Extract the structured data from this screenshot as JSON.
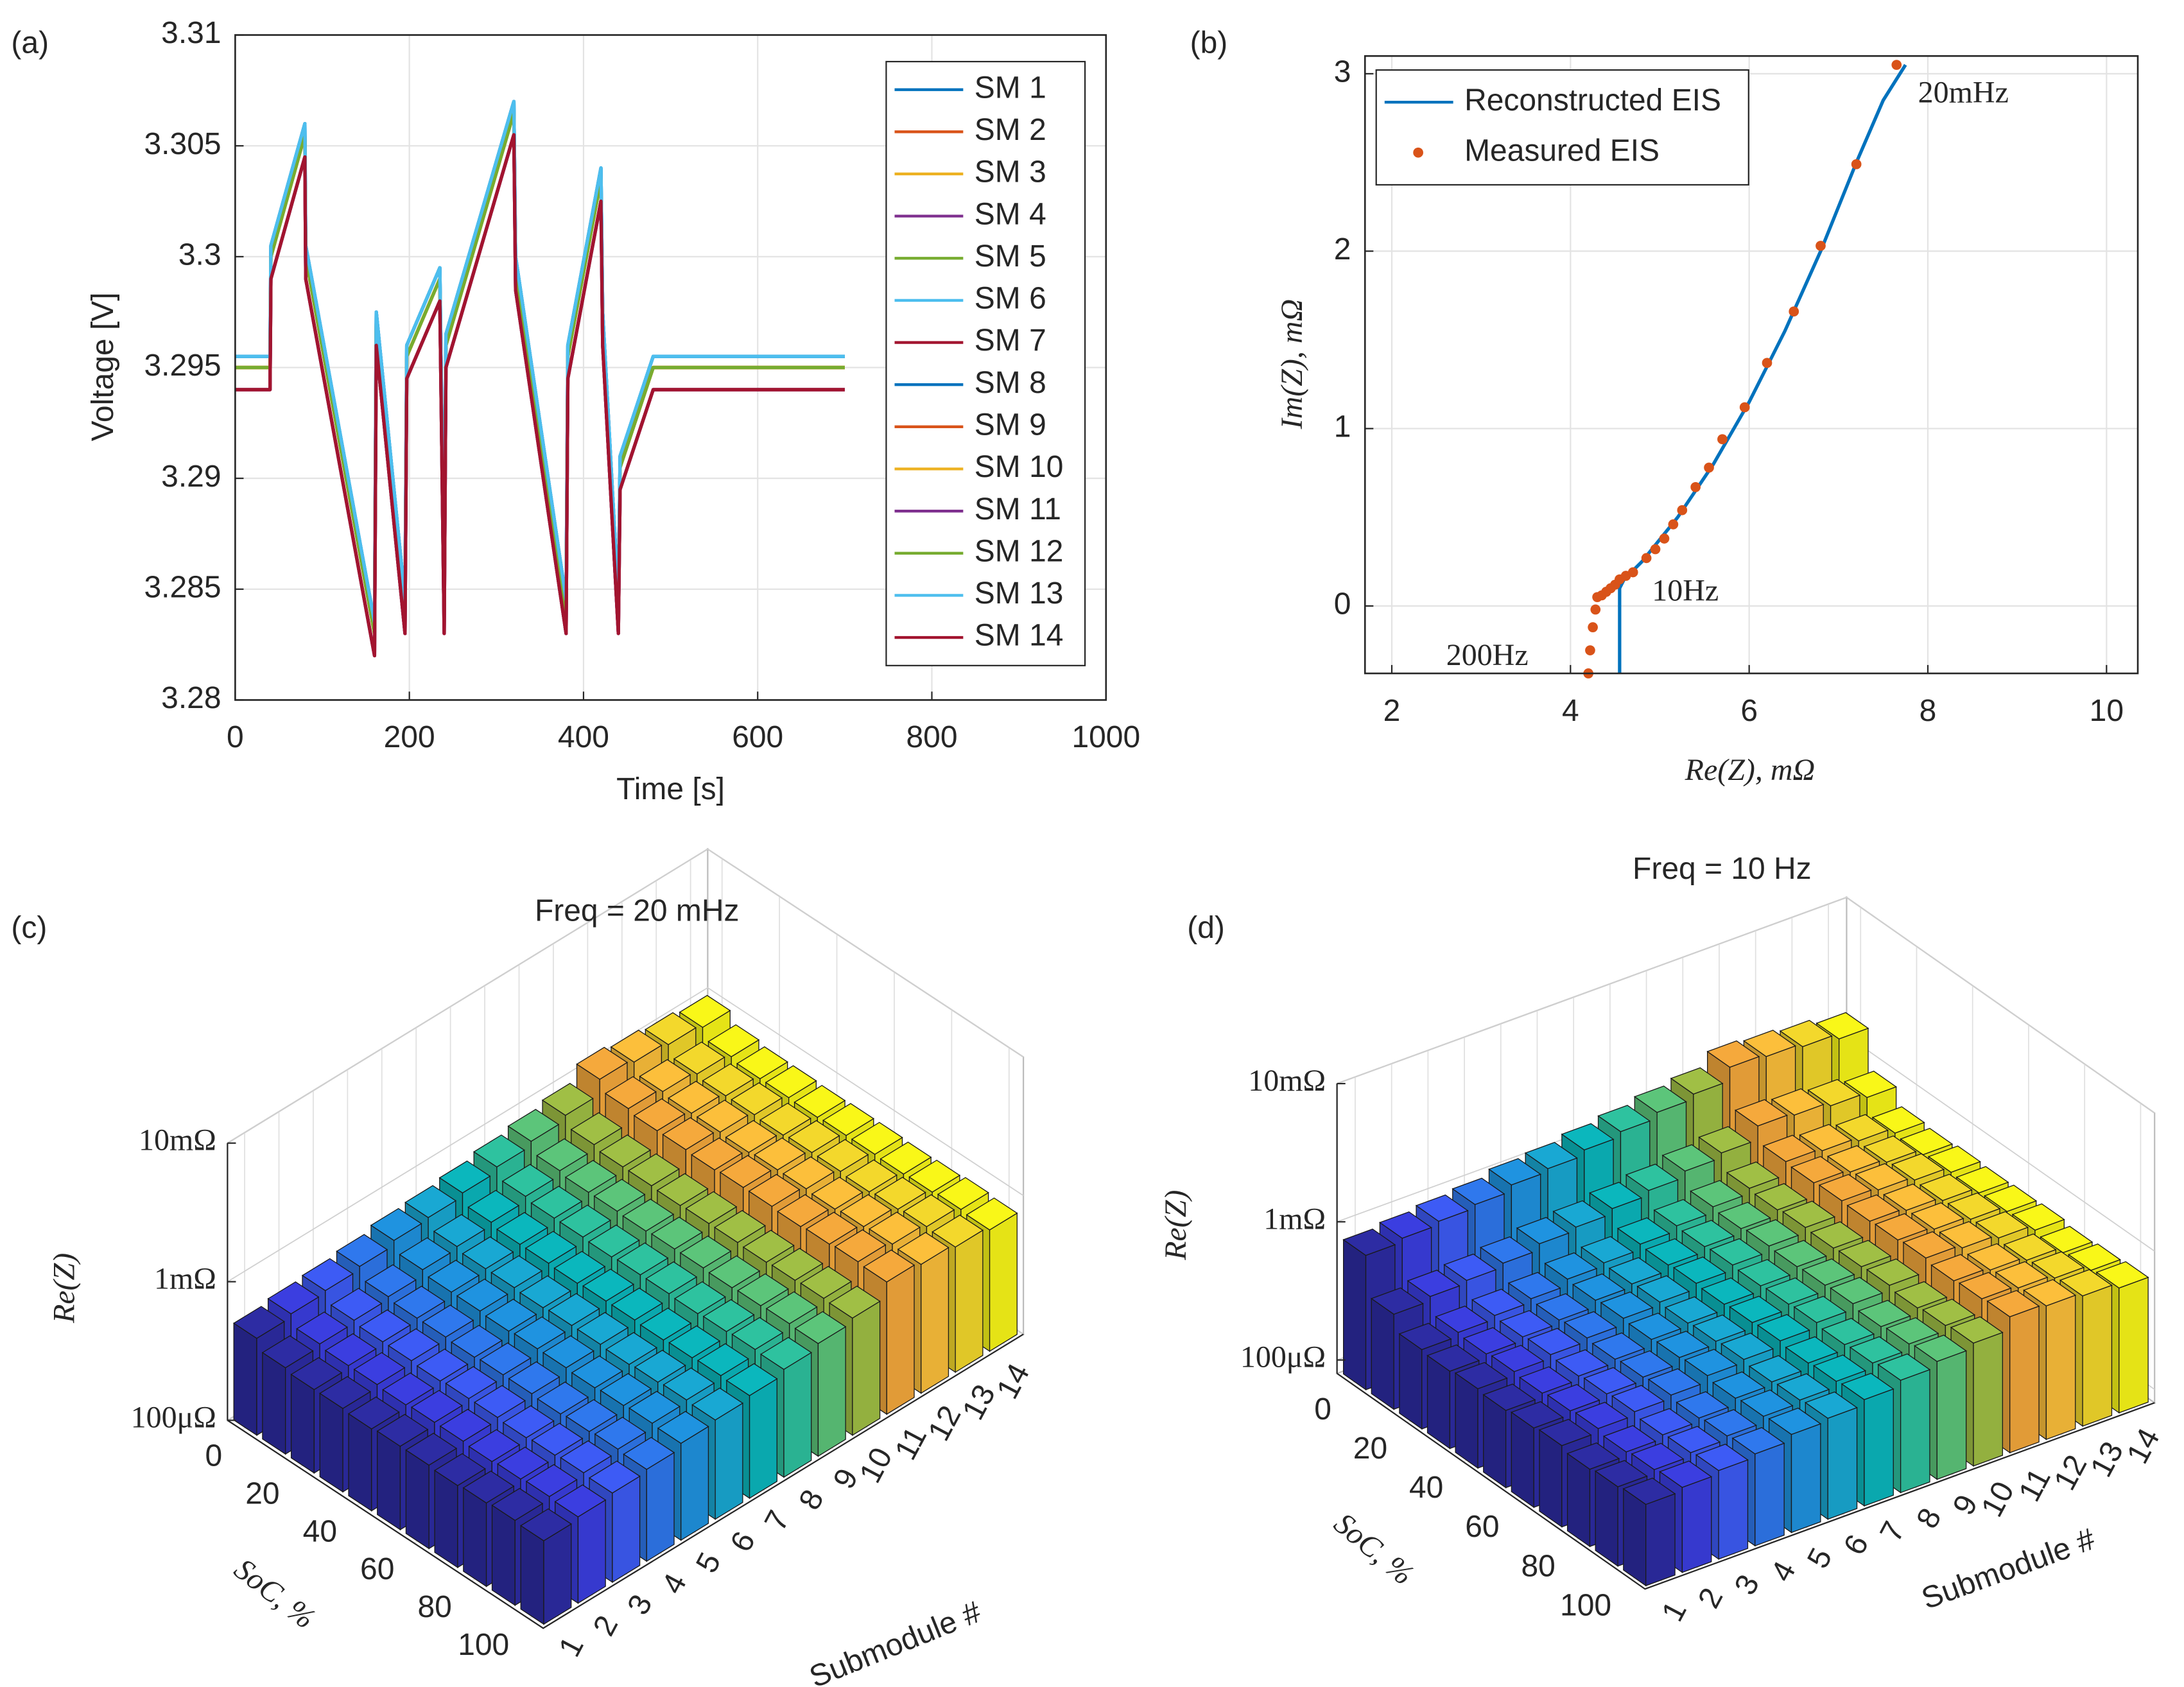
{
  "chart_data": [
    {
      "type": "line",
      "panel_label": "(a)",
      "x_label": "Time [s]",
      "y_label": "Voltage [V]",
      "x": [
        0,
        40,
        41,
        80,
        81,
        160,
        162,
        195,
        197,
        235,
        240,
        242,
        320,
        322,
        380,
        382,
        420,
        422,
        440,
        442,
        480,
        700
      ],
      "xlim": [
        0,
        1000
      ],
      "xticks": [
        0,
        200,
        400,
        600,
        800,
        1000
      ],
      "ylim": [
        3.28,
        3.31
      ],
      "yticks": [
        3.28,
        3.285,
        3.29,
        3.295,
        3.3,
        3.305,
        3.31
      ],
      "grid": true,
      "legend": "northeast",
      "series": [
        {
          "name": "SM 1",
          "color": "#0072BD",
          "values": [
            3.2955,
            3.2955,
            3.3005,
            3.306,
            3.3005,
            3.2835,
            3.2975,
            3.2845,
            3.296,
            3.2995,
            3.2845,
            3.2965,
            3.307,
            3.3,
            3.2845,
            3.296,
            3.304,
            3.2975,
            3.2845,
            3.291,
            3.2955,
            3.2955
          ]
        },
        {
          "name": "SM 2",
          "color": "#D95319",
          "values": [
            3.295,
            3.295,
            3.3,
            3.3055,
            3.3,
            3.283,
            3.297,
            3.284,
            3.2955,
            3.299,
            3.284,
            3.296,
            3.3065,
            3.2995,
            3.284,
            3.2955,
            3.3035,
            3.297,
            3.284,
            3.2905,
            3.295,
            3.295
          ]
        },
        {
          "name": "SM 3",
          "color": "#EDB120",
          "values": [
            3.295,
            3.295,
            3.3,
            3.3055,
            3.3,
            3.283,
            3.297,
            3.284,
            3.2955,
            3.299,
            3.284,
            3.296,
            3.3065,
            3.2995,
            3.284,
            3.2955,
            3.3035,
            3.297,
            3.284,
            3.2905,
            3.295,
            3.295
          ]
        },
        {
          "name": "SM 4",
          "color": "#7E2F8E",
          "values": [
            3.294,
            3.294,
            3.299,
            3.3045,
            3.299,
            3.282,
            3.296,
            3.283,
            3.2945,
            3.298,
            3.283,
            3.295,
            3.3055,
            3.2985,
            3.283,
            3.2945,
            3.3025,
            3.296,
            3.283,
            3.2895,
            3.294,
            3.294
          ]
        },
        {
          "name": "SM 5",
          "color": "#77AC30",
          "values": [
            3.295,
            3.295,
            3.3,
            3.3055,
            3.3,
            3.283,
            3.297,
            3.284,
            3.2955,
            3.299,
            3.284,
            3.296,
            3.3065,
            3.2995,
            3.284,
            3.2955,
            3.3035,
            3.297,
            3.284,
            3.2905,
            3.295,
            3.295
          ]
        },
        {
          "name": "SM 6",
          "color": "#4DBEEE",
          "values": [
            3.2955,
            3.2955,
            3.3005,
            3.306,
            3.3005,
            3.2835,
            3.2975,
            3.2845,
            3.296,
            3.2995,
            3.2845,
            3.2965,
            3.307,
            3.3,
            3.2845,
            3.296,
            3.304,
            3.2975,
            3.2845,
            3.291,
            3.2955,
            3.2955
          ]
        },
        {
          "name": "SM 7",
          "color": "#A2142F",
          "values": [
            3.294,
            3.294,
            3.299,
            3.3045,
            3.299,
            3.282,
            3.296,
            3.283,
            3.2945,
            3.298,
            3.283,
            3.295,
            3.3055,
            3.2985,
            3.283,
            3.2945,
            3.3025,
            3.296,
            3.283,
            3.2895,
            3.294,
            3.294
          ]
        },
        {
          "name": "SM 8",
          "color": "#0072BD",
          "values": [
            3.2955,
            3.2955,
            3.3005,
            3.306,
            3.3005,
            3.2835,
            3.2975,
            3.2845,
            3.296,
            3.2995,
            3.2845,
            3.2965,
            3.307,
            3.3,
            3.2845,
            3.296,
            3.304,
            3.2975,
            3.2845,
            3.291,
            3.2955,
            3.2955
          ]
        },
        {
          "name": "SM 9",
          "color": "#D95319",
          "values": [
            3.295,
            3.295,
            3.3,
            3.3055,
            3.3,
            3.283,
            3.297,
            3.284,
            3.2955,
            3.299,
            3.284,
            3.296,
            3.3065,
            3.2995,
            3.284,
            3.2955,
            3.3035,
            3.297,
            3.284,
            3.2905,
            3.295,
            3.295
          ]
        },
        {
          "name": "SM 10",
          "color": "#EDB120",
          "values": [
            3.295,
            3.295,
            3.3,
            3.3055,
            3.3,
            3.283,
            3.297,
            3.284,
            3.2955,
            3.299,
            3.284,
            3.296,
            3.3065,
            3.2995,
            3.284,
            3.2955,
            3.3035,
            3.297,
            3.284,
            3.2905,
            3.295,
            3.295
          ]
        },
        {
          "name": "SM 11",
          "color": "#7E2F8E",
          "values": [
            3.294,
            3.294,
            3.299,
            3.3045,
            3.299,
            3.282,
            3.296,
            3.283,
            3.2945,
            3.298,
            3.283,
            3.295,
            3.3055,
            3.2985,
            3.283,
            3.2945,
            3.3025,
            3.296,
            3.283,
            3.2895,
            3.294,
            3.294
          ]
        },
        {
          "name": "SM 12",
          "color": "#77AC30",
          "values": [
            3.295,
            3.295,
            3.3,
            3.3055,
            3.3,
            3.283,
            3.297,
            3.284,
            3.2955,
            3.299,
            3.284,
            3.296,
            3.3065,
            3.2995,
            3.284,
            3.2955,
            3.3035,
            3.297,
            3.284,
            3.2905,
            3.295,
            3.295
          ]
        },
        {
          "name": "SM 13",
          "color": "#4DBEEE",
          "values": [
            3.2955,
            3.2955,
            3.3005,
            3.306,
            3.3005,
            3.2835,
            3.2975,
            3.2845,
            3.296,
            3.2995,
            3.2845,
            3.2965,
            3.307,
            3.3,
            3.2845,
            3.296,
            3.304,
            3.2975,
            3.2845,
            3.291,
            3.2955,
            3.2955
          ]
        },
        {
          "name": "SM 14",
          "color": "#A2142F",
          "values": [
            3.294,
            3.294,
            3.299,
            3.3045,
            3.299,
            3.282,
            3.296,
            3.283,
            3.2945,
            3.298,
            3.283,
            3.295,
            3.3055,
            3.2985,
            3.283,
            3.2945,
            3.3025,
            3.296,
            3.283,
            3.2895,
            3.294,
            3.294
          ]
        }
      ]
    },
    {
      "type": "line",
      "panel_label": "(b)",
      "x_label": "Re(Z), mΩ",
      "y_label": "Im(Z), mΩ",
      "xlim": [
        1.7,
        10.35
      ],
      "xticks": [
        2,
        4,
        6,
        8,
        10
      ],
      "ylim": [
        -0.38,
        3.1
      ],
      "yticks": [
        0,
        1,
        2,
        3
      ],
      "grid": true,
      "legend": "northwest",
      "annotations": [
        "20mHz",
        "10Hz",
        "200Hz"
      ],
      "series": [
        {
          "name": "Reconstructed EIS",
          "color": "#0072BD",
          "style": "line",
          "x": [
            4.55,
            4.55,
            4.6,
            4.8,
            5.2,
            5.6,
            6,
            6.4,
            6.8,
            7.2,
            7.5,
            7.75
          ],
          "values": [
            -0.38,
            0.1,
            0.15,
            0.25,
            0.5,
            0.8,
            1.15,
            1.55,
            2.0,
            2.5,
            2.85,
            3.05
          ]
        },
        {
          "name": "Measured EIS",
          "color": "#D95319",
          "style": "marker",
          "x": [
            4.2,
            4.22,
            4.25,
            4.28,
            4.3,
            4.35,
            4.4,
            4.45,
            4.5,
            4.55,
            4.62,
            4.7,
            4.85,
            4.95,
            5.05,
            5.15,
            5.25,
            5.4,
            5.55,
            5.7,
            5.95,
            6.2,
            6.5,
            6.8,
            7.2,
            7.65
          ],
          "values": [
            -0.38,
            -0.25,
            -0.12,
            -0.02,
            0.05,
            0.06,
            0.08,
            0.1,
            0.12,
            0.15,
            0.17,
            0.19,
            0.27,
            0.32,
            0.38,
            0.46,
            0.54,
            0.67,
            0.78,
            0.94,
            1.12,
            1.37,
            1.66,
            2.03,
            2.49,
            3.05
          ]
        }
      ]
    },
    {
      "type": "bar3d",
      "panel_label": "(c)",
      "title": "Freq = 20 mHz",
      "x_label": "Submodule #",
      "y_label": "SoC, %",
      "z_label": "Re(Z)",
      "categories": [
        "1",
        "2",
        "3",
        "4",
        "5",
        "6",
        "7",
        "8",
        "9",
        "10",
        "11",
        "12",
        "13",
        "14"
      ],
      "soc": [
        0,
        10,
        20,
        30,
        40,
        50,
        60,
        70,
        80,
        90,
        100
      ],
      "socticks": [
        0,
        20,
        40,
        60,
        80,
        100
      ],
      "log_z": true,
      "zlim": [
        0.0001,
        0.01
      ],
      "zticks": [
        {
          "value": 0.0001,
          "label": "100μΩ"
        },
        {
          "value": 0.001,
          "label": "1mΩ"
        },
        {
          "value": 0.01,
          "label": "10mΩ"
        }
      ],
      "grid": true,
      "colors": [
        "#2d2ca3",
        "#3b3ee0",
        "#3d5bf5",
        "#2f78ed",
        "#1f93e0",
        "#19a8d3",
        "#0bb7bd",
        "#2ec29f",
        "#5cc57a",
        "#a0bf45",
        "#f5a93c",
        "#fcbf3b",
        "#f3d82c",
        "#f9f718"
      ],
      "values": [
        [
          0.0005,
          0.00042,
          0.0004,
          0.0004,
          0.00039,
          0.0004,
          0.0004,
          0.00039,
          0.0004,
          0.00041,
          0.0004
        ],
        [
          0.00053,
          0.00044,
          0.00042,
          0.00042,
          0.00041,
          0.00042,
          0.00042,
          0.00041,
          0.00042,
          0.00043,
          0.00042
        ],
        [
          0.00055,
          0.00046,
          0.00044,
          0.00044,
          0.00043,
          0.00044,
          0.00044,
          0.00043,
          0.00044,
          0.00045,
          0.00044
        ],
        [
          0.00058,
          0.00048,
          0.00046,
          0.00046,
          0.00045,
          0.00046,
          0.00046,
          0.00045,
          0.00046,
          0.00047,
          0.00046
        ],
        [
          0.00063,
          0.00053,
          0.0005,
          0.0005,
          0.00049,
          0.0005,
          0.0005,
          0.00049,
          0.0005,
          0.00051,
          0.0005
        ],
        [
          0.00065,
          0.00055,
          0.00052,
          0.00052,
          0.00051,
          0.00052,
          0.00052,
          0.00051,
          0.00052,
          0.00053,
          0.00052
        ],
        [
          0.00069,
          0.00058,
          0.00055,
          0.00055,
          0.00054,
          0.00055,
          0.00055,
          0.00054,
          0.00055,
          0.00056,
          0.00055
        ],
        [
          0.00075,
          0.00063,
          0.0006,
          0.0006,
          0.00059,
          0.0006,
          0.0006,
          0.00059,
          0.0006,
          0.00061,
          0.0006
        ],
        [
          0.00081,
          0.00068,
          0.00065,
          0.00065,
          0.00064,
          0.00065,
          0.00065,
          0.00064,
          0.00065,
          0.00066,
          0.00065
        ],
        [
          0.00088,
          0.00074,
          0.0007,
          0.0007,
          0.00069,
          0.0007,
          0.0007,
          0.00069,
          0.0007,
          0.00071,
          0.0007
        ],
        [
          0.00113,
          0.00095,
          0.0009,
          0.0009,
          0.00088,
          0.0009,
          0.0009,
          0.00088,
          0.0009,
          0.00092,
          0.0009
        ],
        [
          0.00106,
          0.00089,
          0.00085,
          0.00085,
          0.00083,
          0.00085,
          0.00085,
          0.00083,
          0.00085,
          0.00087,
          0.00085
        ],
        [
          0.001,
          0.00084,
          0.0008,
          0.0008,
          0.00078,
          0.0008,
          0.0008,
          0.00078,
          0.0008,
          0.00082,
          0.0008
        ],
        [
          0.00094,
          0.00079,
          0.00075,
          0.00075,
          0.00074,
          0.00075,
          0.00075,
          0.00074,
          0.00075,
          0.00077,
          0.00075
        ]
      ]
    },
    {
      "type": "bar3d",
      "panel_label": "(d)",
      "title": "Freq = 10 Hz",
      "x_label": "Submodule #",
      "y_label": "SoC, %",
      "z_label": "Re(Z)",
      "categories": [
        "1",
        "2",
        "3",
        "4",
        "5",
        "6",
        "7",
        "8",
        "9",
        "10",
        "11",
        "12",
        "13",
        "14"
      ],
      "soc": [
        0,
        10,
        20,
        30,
        40,
        50,
        60,
        70,
        80,
        90,
        100
      ],
      "socticks": [
        0,
        20,
        40,
        60,
        80,
        100
      ],
      "log_z": true,
      "zlim": [
        8e-05,
        0.01
      ],
      "zticks": [
        {
          "value": 0.0001,
          "label": "100μΩ"
        },
        {
          "value": 0.001,
          "label": "1mΩ"
        },
        {
          "value": 0.01,
          "label": "10mΩ"
        }
      ],
      "grid": true,
      "colors": [
        "#2d2ca3",
        "#3b3ee0",
        "#3d5bf5",
        "#2f78ed",
        "#1f93e0",
        "#19a8d3",
        "#0bb7bd",
        "#2ec29f",
        "#5cc57a",
        "#a0bf45",
        "#f5a93c",
        "#fcbf3b",
        "#f3d82c",
        "#f9f718"
      ],
      "values": [
        [
          0.00075,
          0.00039,
          0.0003,
          0.00029,
          0.0003,
          0.00029,
          0.0003,
          0.00031,
          0.00029,
          0.0003,
          0.00031
        ],
        [
          0.0008,
          0.00042,
          0.00032,
          0.00031,
          0.00032,
          0.00031,
          0.00032,
          0.00033,
          0.00031,
          0.00032,
          0.00033
        ],
        [
          0.00085,
          0.00044,
          0.00034,
          0.00033,
          0.00034,
          0.00033,
          0.00034,
          0.00035,
          0.00033,
          0.00034,
          0.00035
        ],
        [
          0.0009,
          0.00047,
          0.00036,
          0.00035,
          0.00036,
          0.00035,
          0.00036,
          0.00037,
          0.00035,
          0.00036,
          0.00037
        ],
        [
          0.001,
          0.00052,
          0.0004,
          0.00039,
          0.0004,
          0.00039,
          0.0004,
          0.00041,
          0.00039,
          0.0004,
          0.00041
        ],
        [
          0.00105,
          0.00055,
          0.00042,
          0.00041,
          0.00042,
          0.00041,
          0.00042,
          0.00043,
          0.00041,
          0.00042,
          0.00043
        ],
        [
          0.00115,
          0.0006,
          0.00046,
          0.00045,
          0.00046,
          0.00045,
          0.00046,
          0.00047,
          0.00045,
          0.00046,
          0.00047
        ],
        [
          0.00125,
          0.00065,
          0.0005,
          0.00049,
          0.0005,
          0.00049,
          0.0005,
          0.00051,
          0.00049,
          0.0005,
          0.00052
        ],
        [
          0.00138,
          0.00072,
          0.00055,
          0.00053,
          0.00055,
          0.00054,
          0.00055,
          0.00056,
          0.00053,
          0.00055,
          0.00057
        ],
        [
          0.0015,
          0.00078,
          0.0006,
          0.00058,
          0.0006,
          0.00059,
          0.0006,
          0.00061,
          0.00058,
          0.0006,
          0.00062
        ],
        [
          0.00188,
          0.00098,
          0.00075,
          0.00073,
          0.00075,
          0.00074,
          0.00075,
          0.00077,
          0.00073,
          0.00075,
          0.00077
        ],
        [
          0.0018,
          0.00094,
          0.00072,
          0.0007,
          0.00072,
          0.00071,
          0.00072,
          0.00073,
          0.0007,
          0.00072,
          0.00074
        ],
        [
          0.0017,
          0.00088,
          0.00068,
          0.00066,
          0.00068,
          0.00067,
          0.00068,
          0.00069,
          0.00066,
          0.00068,
          0.0007
        ],
        [
          0.00155,
          0.00081,
          0.00062,
          0.0006,
          0.00062,
          0.00061,
          0.00062,
          0.00063,
          0.0006,
          0.00062,
          0.00064
        ]
      ]
    }
  ]
}
